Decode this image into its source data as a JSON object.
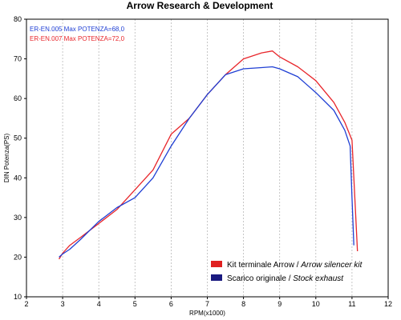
{
  "chart_data": {
    "type": "line",
    "title": "Arrow Research & Development",
    "xlabel": "RPM(x1000)",
    "ylabel": "DIN Potenza(PS)",
    "xlim": [
      2,
      12
    ],
    "ylim": [
      10,
      80
    ],
    "xticks": [
      2,
      3,
      4,
      5,
      6,
      7,
      8,
      9,
      10,
      11,
      12
    ],
    "yticks": [
      10,
      20,
      30,
      40,
      50,
      60,
      70,
      80
    ],
    "grid": "vertical dashed",
    "legend_position": "bottom-right",
    "annotations": [
      {
        "text": "ER-EN.005  Max POTENZA=68,0",
        "color": "#1f3fd4"
      },
      {
        "text": "ER-EN.007  Max POTENZA=72,0",
        "color": "#e8262b"
      }
    ],
    "series": [
      {
        "name": "Kit terminale Arrow / Arrow silencer kit",
        "name_plain": "Kit terminale Arrow / ",
        "name_italic": "Arrow silencer kit",
        "color": "#e8262b",
        "legend_color": "#e02020",
        "x": [
          2.9,
          3.0,
          3.2,
          3.5,
          4.0,
          4.5,
          5.0,
          5.5,
          6.0,
          6.5,
          7.0,
          7.5,
          8.0,
          8.5,
          8.8,
          9.0,
          9.5,
          10.0,
          10.5,
          10.8,
          11.0,
          11.05,
          11.1,
          11.15
        ],
        "y": [
          19.5,
          21.0,
          23.0,
          25.0,
          28.5,
          32.0,
          37.0,
          42.0,
          51.0,
          55.0,
          61.0,
          66.0,
          70.0,
          71.5,
          72.0,
          70.5,
          68.0,
          64.5,
          59.0,
          54.0,
          49.5,
          40.0,
          31.0,
          21.5
        ]
      },
      {
        "name": "Scarico originale / Stock exhaust",
        "name_plain": "Scarico originale / ",
        "name_italic": "Stock exhaust",
        "color": "#1f3fd4",
        "legend_color": "#1a1a80",
        "x": [
          2.9,
          3.0,
          3.2,
          3.5,
          4.0,
          4.5,
          5.0,
          5.5,
          6.0,
          6.5,
          7.0,
          7.5,
          8.0,
          8.5,
          8.8,
          9.0,
          9.5,
          10.0,
          10.5,
          10.8,
          10.95,
          11.0,
          11.05
        ],
        "y": [
          20.0,
          20.8,
          22.0,
          24.5,
          29.0,
          32.5,
          35.0,
          40.0,
          48.0,
          55.0,
          61.0,
          66.0,
          67.5,
          67.8,
          68.0,
          67.5,
          65.5,
          61.5,
          57.0,
          52.0,
          48.0,
          35.0,
          23.0
        ]
      }
    ]
  }
}
